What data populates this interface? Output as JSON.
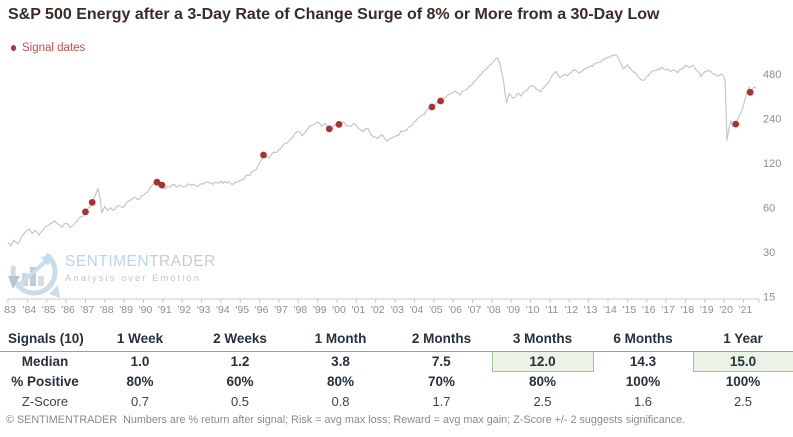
{
  "header": {
    "title": "S&P 500 Energy after a 3-Day Rate of Change Surge of 8% or More from a 30-Day Low",
    "legend_label": "Signal dates"
  },
  "watermark": {
    "brand_a": "SENTIMEN",
    "brand_b": "TRADER",
    "tagline": "Analysis over Emotion"
  },
  "colors": {
    "signal_red": "#a93330",
    "legend_red": "#c0504d",
    "line_gray": "#c6c6c6",
    "axis_line_gray": "#c8c8c8",
    "axis_text_gray": "#8f8f8f",
    "highlight_bg": "#ebf2e6",
    "highlight_border": "#a3c497",
    "table_text": "#26313d",
    "watermark_blue": "#b9d6ea"
  },
  "chart_data": {
    "type": "line",
    "title": "S&P 500 Energy after a 3-Day Rate of Change Surge of 8% or More from a 30-Day Low",
    "legend": [
      "Signal dates"
    ],
    "y_scale": "log2",
    "y_ticks": [
      480,
      240,
      120,
      60,
      30,
      15
    ],
    "ylim": [
      14,
      700
    ],
    "x_range": [
      1983,
      2021.7
    ],
    "x_tick_labels": [
      "83",
      "'84",
      "'85",
      "'86",
      "'87",
      "'88",
      "'89",
      "'90",
      "'91",
      "'92",
      "'93",
      "'94",
      "'95",
      "'96",
      "'97",
      "'98",
      "'99",
      "'00",
      "'01",
      "'02",
      "'03",
      "'04",
      "'05",
      "'06",
      "'07",
      "'08",
      "'09",
      "'10",
      "'11",
      "'12",
      "'13",
      "'14",
      "'15",
      "'16",
      "'17",
      "'18",
      "'19",
      "'20",
      "'21"
    ],
    "grid": false,
    "legend_position": "top-left",
    "series": [
      {
        "name": "S&P 500 Energy",
        "points": [
          [
            1983.0,
            35
          ],
          [
            1983.15,
            33
          ],
          [
            1983.3,
            36
          ],
          [
            1983.5,
            34
          ],
          [
            1983.7,
            38
          ],
          [
            1983.9,
            41
          ],
          [
            1984.1,
            43
          ],
          [
            1984.25,
            40
          ],
          [
            1984.4,
            42
          ],
          [
            1984.6,
            39
          ],
          [
            1984.8,
            42
          ],
          [
            1985.0,
            45
          ],
          [
            1985.2,
            47
          ],
          [
            1985.4,
            49
          ],
          [
            1985.6,
            46
          ],
          [
            1985.8,
            44
          ],
          [
            1986.0,
            47
          ],
          [
            1986.2,
            44
          ],
          [
            1986.4,
            46
          ],
          [
            1986.6,
            49
          ],
          [
            1986.8,
            52
          ],
          [
            1987.0,
            56
          ],
          [
            1987.2,
            60
          ],
          [
            1987.35,
            65
          ],
          [
            1987.5,
            72
          ],
          [
            1987.65,
            81
          ],
          [
            1987.75,
            70
          ],
          [
            1987.85,
            55
          ],
          [
            1988.0,
            61
          ],
          [
            1988.15,
            57
          ],
          [
            1988.3,
            60
          ],
          [
            1988.5,
            58
          ],
          [
            1988.7,
            62
          ],
          [
            1988.9,
            60
          ],
          [
            1989.1,
            64
          ],
          [
            1989.3,
            67
          ],
          [
            1989.5,
            70
          ],
          [
            1989.7,
            68
          ],
          [
            1989.9,
            72
          ],
          [
            1990.1,
            75
          ],
          [
            1990.3,
            80
          ],
          [
            1990.5,
            86
          ],
          [
            1990.7,
            89
          ],
          [
            1990.95,
            85
          ],
          [
            1991.1,
            80
          ],
          [
            1991.3,
            83
          ],
          [
            1991.5,
            86
          ],
          [
            1991.7,
            82
          ],
          [
            1991.9,
            85
          ],
          [
            1992.1,
            83
          ],
          [
            1992.4,
            86
          ],
          [
            1992.7,
            84
          ],
          [
            1993.0,
            87
          ],
          [
            1993.3,
            89
          ],
          [
            1993.6,
            86
          ],
          [
            1993.9,
            88
          ],
          [
            1994.2,
            90
          ],
          [
            1994.5,
            87
          ],
          [
            1994.8,
            89
          ],
          [
            1995.1,
            93
          ],
          [
            1995.4,
            99
          ],
          [
            1995.7,
            106
          ],
          [
            1995.95,
            117
          ],
          [
            1996.2,
            136
          ],
          [
            1996.5,
            130
          ],
          [
            1996.8,
            142
          ],
          [
            1997.1,
            150
          ],
          [
            1997.4,
            163
          ],
          [
            1997.7,
            178
          ],
          [
            1998.0,
            196
          ],
          [
            1998.2,
            183
          ],
          [
            1998.5,
            205
          ],
          [
            1998.8,
            218
          ],
          [
            1999.0,
            227
          ],
          [
            1999.2,
            212
          ],
          [
            1999.4,
            222
          ],
          [
            1999.6,
            204
          ],
          [
            1999.8,
            212
          ],
          [
            2000.1,
            219
          ],
          [
            2000.35,
            228
          ],
          [
            2000.6,
            214
          ],
          [
            2000.85,
            222
          ],
          [
            2001.1,
            205
          ],
          [
            2001.35,
            196
          ],
          [
            2001.6,
            205
          ],
          [
            2001.85,
            182
          ],
          [
            2002.1,
            176
          ],
          [
            2002.35,
            186
          ],
          [
            2002.6,
            169
          ],
          [
            2002.85,
            178
          ],
          [
            2003.1,
            184
          ],
          [
            2003.4,
            196
          ],
          [
            2003.7,
            210
          ],
          [
            2004.0,
            228
          ],
          [
            2004.3,
            247
          ],
          [
            2004.6,
            268
          ],
          [
            2004.9,
            287
          ],
          [
            2005.1,
            300
          ],
          [
            2005.35,
            315
          ],
          [
            2005.6,
            332
          ],
          [
            2005.85,
            352
          ],
          [
            2006.1,
            368
          ],
          [
            2006.35,
            345
          ],
          [
            2006.6,
            372
          ],
          [
            2006.85,
            398
          ],
          [
            2007.1,
            428
          ],
          [
            2007.35,
            465
          ],
          [
            2007.6,
            505
          ],
          [
            2007.85,
            545
          ],
          [
            2008.1,
            585
          ],
          [
            2008.3,
            615
          ],
          [
            2008.45,
            540
          ],
          [
            2008.6,
            430
          ],
          [
            2008.75,
            306
          ],
          [
            2008.9,
            355
          ],
          [
            2009.1,
            330
          ],
          [
            2009.3,
            352
          ],
          [
            2009.5,
            340
          ],
          [
            2009.7,
            368
          ],
          [
            2009.9,
            385
          ],
          [
            2010.1,
            398
          ],
          [
            2010.3,
            378
          ],
          [
            2010.5,
            362
          ],
          [
            2010.7,
            390
          ],
          [
            2010.9,
            415
          ],
          [
            2011.1,
            465
          ],
          [
            2011.3,
            500
          ],
          [
            2011.5,
            455
          ],
          [
            2011.7,
            475
          ],
          [
            2011.9,
            465
          ],
          [
            2012.1,
            490
          ],
          [
            2012.3,
            510
          ],
          [
            2012.5,
            485
          ],
          [
            2012.7,
            505
          ],
          [
            2012.9,
            525
          ],
          [
            2013.1,
            545
          ],
          [
            2013.4,
            570
          ],
          [
            2013.7,
            595
          ],
          [
            2014.0,
            620
          ],
          [
            2014.2,
            640
          ],
          [
            2014.4,
            648
          ],
          [
            2014.6,
            590
          ],
          [
            2014.8,
            520
          ],
          [
            2015.0,
            555
          ],
          [
            2015.2,
            515
          ],
          [
            2015.4,
            490
          ],
          [
            2015.6,
            455
          ],
          [
            2015.8,
            435
          ],
          [
            2016.0,
            462
          ],
          [
            2016.2,
            488
          ],
          [
            2016.4,
            505
          ],
          [
            2016.6,
            522
          ],
          [
            2016.8,
            535
          ],
          [
            2017.0,
            515
          ],
          [
            2017.2,
            498
          ],
          [
            2017.4,
            510
          ],
          [
            2017.6,
            490
          ],
          [
            2017.8,
            520
          ],
          [
            2018.0,
            548
          ],
          [
            2018.2,
            530
          ],
          [
            2018.4,
            552
          ],
          [
            2018.6,
            505
          ],
          [
            2018.8,
            462
          ],
          [
            2019.0,
            498
          ],
          [
            2019.2,
            510
          ],
          [
            2019.4,
            482
          ],
          [
            2019.6,
            470
          ],
          [
            2019.8,
            478
          ],
          [
            2020.0,
            455
          ],
          [
            2020.05,
            428
          ],
          [
            2020.15,
            171
          ],
          [
            2020.25,
            205
          ],
          [
            2020.35,
            232
          ],
          [
            2020.45,
            212
          ],
          [
            2020.6,
            220
          ],
          [
            2020.7,
            238
          ],
          [
            2020.8,
            252
          ],
          [
            2020.9,
            268
          ],
          [
            2021.0,
            295
          ],
          [
            2021.1,
            330
          ],
          [
            2021.2,
            370
          ],
          [
            2021.3,
            391
          ],
          [
            2021.35,
            361
          ],
          [
            2021.45,
            378
          ],
          [
            2021.55,
            392
          ],
          [
            2021.65,
            385
          ]
        ]
      }
    ],
    "signals": [
      [
        1987.0,
        56
      ],
      [
        1987.35,
        65
      ],
      [
        1990.7,
        89
      ],
      [
        1990.95,
        85
      ],
      [
        1996.2,
        136
      ],
      [
        1999.6,
        204
      ],
      [
        2000.1,
        219
      ],
      [
        2004.9,
        287
      ],
      [
        2005.35,
        315
      ],
      [
        2020.6,
        220
      ],
      [
        2021.35,
        361
      ]
    ]
  },
  "table": {
    "corner": "Signals (10)",
    "columns": [
      "1 Week",
      "2 Weeks",
      "1 Month",
      "2 Months",
      "3 Months",
      "6 Months",
      "1 Year"
    ],
    "rows": [
      {
        "label": "Median",
        "bold": true,
        "values": [
          "1.0",
          "1.2",
          "3.8",
          "7.5",
          "12.0",
          "14.3",
          "15.0"
        ],
        "highlight": [
          4,
          6
        ]
      },
      {
        "label": "% Positive",
        "bold": true,
        "values": [
          "80%",
          "60%",
          "80%",
          "70%",
          "80%",
          "100%",
          "100%"
        ],
        "highlight": []
      },
      {
        "label": "Z-Score",
        "bold": false,
        "values": [
          "0.7",
          "0.5",
          "0.8",
          "1.7",
          "2.5",
          "1.6",
          "2.5"
        ],
        "highlight": []
      }
    ]
  },
  "footer": {
    "text": "© SENTIMENTRADER  Numbers are % return after signal; Risk = avg max loss; Reward = avg max gain; Z-Score +/- 2 suggests significance."
  }
}
